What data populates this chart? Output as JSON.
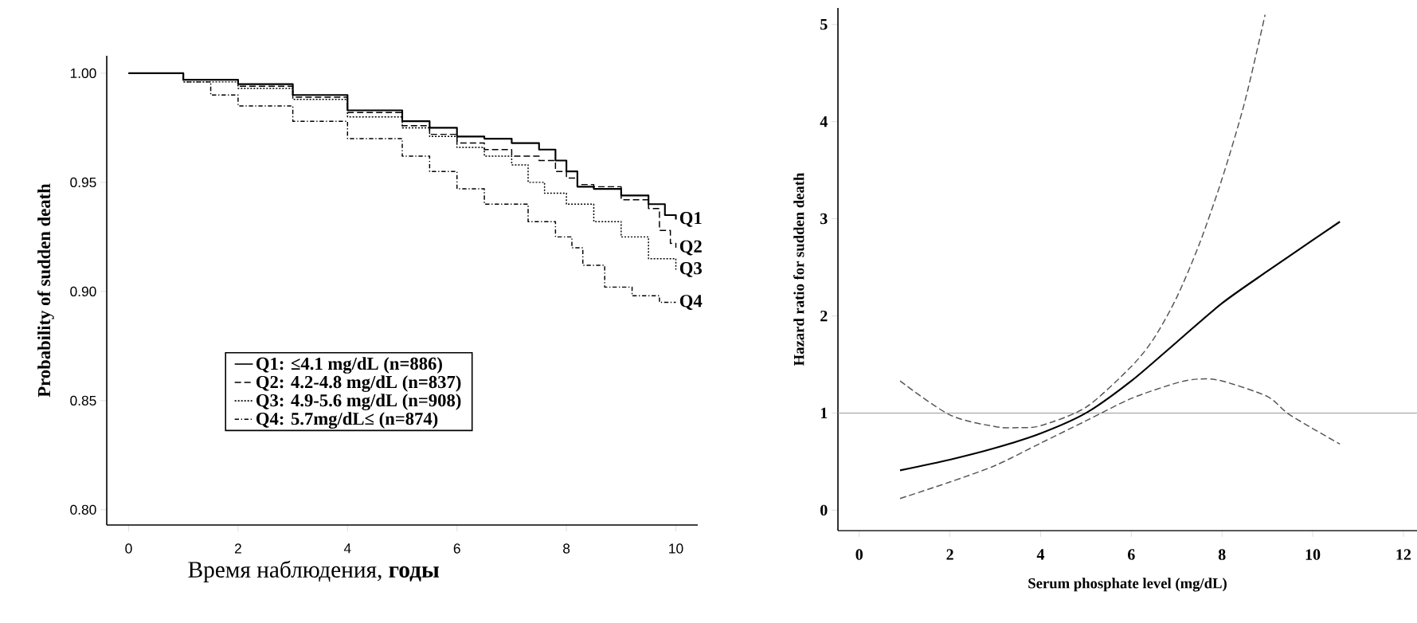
{
  "chart_data": [
    {
      "type": "step",
      "ylabel": "Probability of sudden death",
      "xlabel": "Время наблюдения, **годы**",
      "xlim": [
        -0.4,
        10.4
      ],
      "ylim": [
        0.793,
        1.008
      ],
      "xticks": [
        0,
        2,
        4,
        6,
        8,
        10
      ],
      "yticks": [
        {
          "value": 0.8,
          "label": "0.80"
        },
        {
          "value": 0.85,
          "label": "0.85"
        },
        {
          "value": 0.9,
          "label": "0.90"
        },
        {
          "value": 0.95,
          "label": "0.95"
        },
        {
          "value": 1.0,
          "label": "1.00"
        }
      ],
      "legend": "bottom left",
      "series": [
        {
          "name": "Q1: ≤4.1 mg/dL (n=886)",
          "color": "#000000",
          "line_style": "solid",
          "x": [
            0,
            1,
            2,
            3,
            4,
            5,
            5.5,
            6,
            6.5,
            7,
            7.5,
            7.8,
            8,
            8.2,
            8.5,
            9,
            9.5,
            9.8,
            10
          ],
          "values": [
            1.0,
            0.997,
            0.995,
            0.99,
            0.983,
            0.978,
            0.975,
            0.971,
            0.97,
            0.968,
            0.965,
            0.96,
            0.955,
            0.948,
            0.947,
            0.944,
            0.94,
            0.935,
            0.933
          ]
        },
        {
          "name": "Q2: 4.2-4.8 mg/dL (n=837)",
          "color": "#000000",
          "line_style": "dashed",
          "x": [
            0,
            1,
            2,
            3,
            4,
            5,
            5.5,
            6,
            6.5,
            7,
            7.5,
            7.8,
            8,
            8.2,
            8.5,
            9,
            9.5,
            9.7,
            9.9,
            10
          ],
          "values": [
            1.0,
            0.997,
            0.994,
            0.989,
            0.982,
            0.976,
            0.972,
            0.968,
            0.965,
            0.962,
            0.96,
            0.955,
            0.952,
            0.949,
            0.948,
            0.942,
            0.938,
            0.928,
            0.922,
            0.92
          ]
        },
        {
          "name": "Q3: 4.9-5.6 mg/dL (n=908)",
          "color": "#000000",
          "line_style": "dotted",
          "x": [
            0,
            1,
            2,
            3,
            4,
            5,
            5.5,
            6,
            6.5,
            7,
            7.3,
            7.6,
            8,
            8.5,
            9,
            9.5,
            10
          ],
          "values": [
            1.0,
            0.996,
            0.993,
            0.988,
            0.98,
            0.975,
            0.971,
            0.966,
            0.962,
            0.958,
            0.95,
            0.945,
            0.94,
            0.932,
            0.925,
            0.915,
            0.91
          ]
        },
        {
          "name": "Q4: 5.7mg/dL≤ (n=874)",
          "color": "#000000",
          "line_style": "dashdot",
          "x": [
            0,
            1,
            1.5,
            2,
            3,
            4,
            5,
            5.5,
            6,
            6.5,
            7,
            7.3,
            7.8,
            8.1,
            8.3,
            8.7,
            9.2,
            9.7,
            10
          ],
          "values": [
            1.0,
            0.996,
            0.99,
            0.985,
            0.978,
            0.97,
            0.962,
            0.955,
            0.947,
            0.94,
            0.94,
            0.932,
            0.925,
            0.92,
            0.912,
            0.902,
            0.898,
            0.895,
            0.895
          ]
        }
      ],
      "annotations": [
        "Q1",
        "Q2",
        "Q3",
        "Q4"
      ]
    },
    {
      "type": "line",
      "ylabel": "Hazard ratio for sudden death",
      "xlabel": "Serum phosphate level (mg/dL)",
      "xlim": [
        -0.47,
        12.3
      ],
      "ylim": [
        -0.21,
        5.17
      ],
      "xticks": [
        0,
        2,
        4,
        6,
        8,
        10,
        12
      ],
      "yticks": [
        0,
        1,
        2,
        3,
        4,
        5
      ],
      "ref_lines": [
        {
          "axis": "y",
          "value": 1,
          "color": "#999999"
        }
      ],
      "series": [
        {
          "color": "#000000",
          "line_style": "solid",
          "x": [
            0.9,
            2,
            3,
            4,
            5,
            6,
            7,
            8,
            9,
            10,
            10.6
          ],
          "values": [
            0.41,
            0.52,
            0.64,
            0.79,
            1.0,
            1.33,
            1.73,
            2.13,
            2.46,
            2.78,
            2.97
          ]
        },
        {
          "color": "#555555",
          "line_style": "dashed",
          "x": [
            0.9,
            2,
            3,
            3.5,
            4,
            5,
            6,
            6.5,
            7,
            7.5,
            8,
            8.5,
            8.95
          ],
          "values": [
            1.33,
            0.98,
            0.86,
            0.85,
            0.87,
            1.06,
            1.48,
            1.77,
            2.19,
            2.74,
            3.41,
            4.2,
            5.1
          ]
        },
        {
          "color": "#555555",
          "line_style": "dashed",
          "x": [
            0.9,
            2,
            3,
            4,
            5,
            6,
            7,
            7.5,
            8,
            9,
            9.5,
            10.6
          ],
          "values": [
            0.12,
            0.29,
            0.46,
            0.69,
            0.92,
            1.15,
            1.31,
            1.35,
            1.33,
            1.17,
            0.98,
            0.68
          ]
        }
      ]
    }
  ]
}
